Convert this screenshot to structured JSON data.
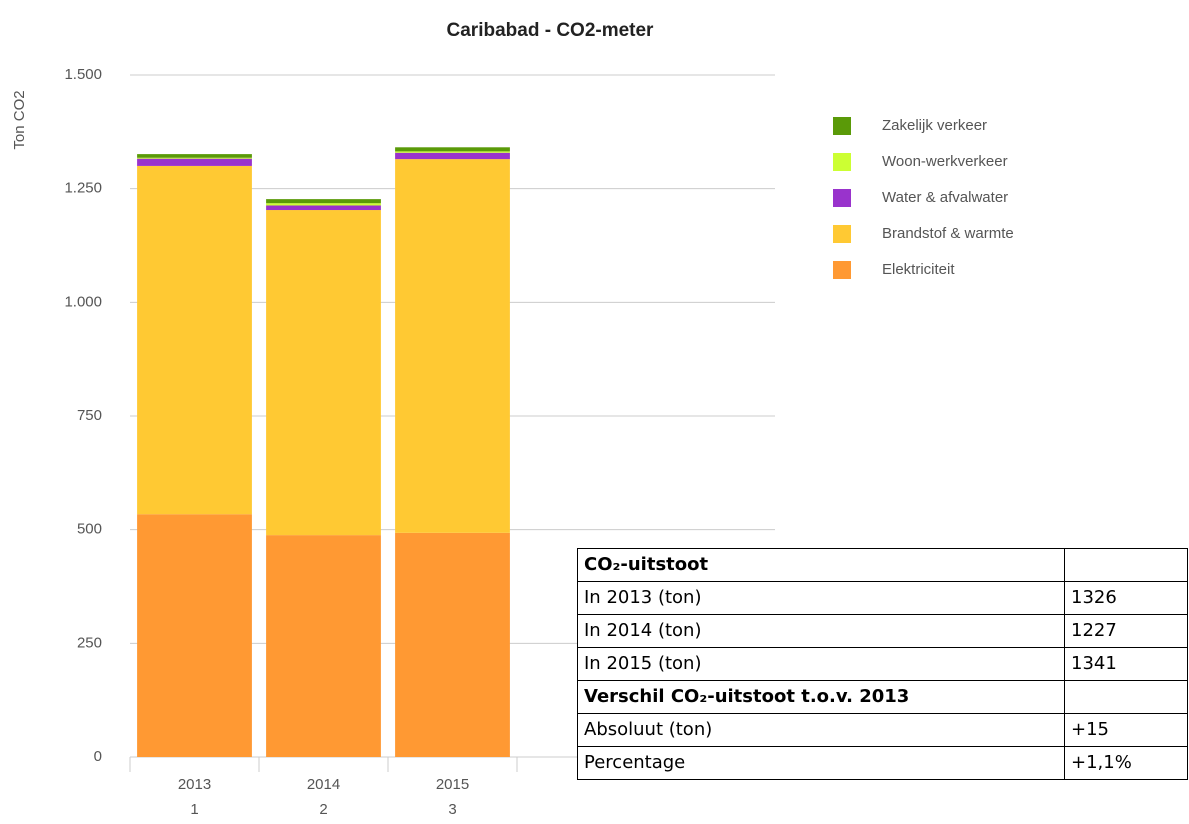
{
  "chart_data": {
    "type": "stacked_bar",
    "title": "Caribabad - CO2-meter",
    "y_label": "Ton CO2",
    "categories": [
      "2013",
      "2014",
      "2015",
      null,
      null
    ],
    "category_numbers": [
      "1",
      "2",
      "3",
      null,
      null
    ],
    "series": [
      {
        "name": "Elektriciteit",
        "color": "#ff9933",
        "values": [
          534,
          488,
          493,
          null,
          null
        ]
      },
      {
        "name": "Brandstof & warmte",
        "color": "#ffc933",
        "values": [
          766,
          715,
          822,
          null,
          null
        ]
      },
      {
        "name": "Water & afvalwater",
        "color": "#9933cc",
        "values": [
          16,
          10,
          14,
          null,
          null
        ]
      },
      {
        "name": "Woon-werkverkeer",
        "color": "#ccff33",
        "values": [
          2,
          5,
          3,
          null,
          null
        ]
      },
      {
        "name": "Zakelijk verkeer",
        "color": "#5a9a08",
        "values": [
          8,
          9,
          9,
          null,
          null
        ]
      }
    ],
    "ylim": [
      0,
      1500
    ],
    "yticks": [
      0,
      250,
      500,
      750,
      {
        "value": 1000,
        "label": "1.000"
      },
      {
        "value": 1250,
        "label": "1.250"
      },
      {
        "value": 1500,
        "label": "1.500"
      }
    ],
    "grid": true,
    "legend": "right"
  },
  "table": {
    "sections": [
      {
        "heading": "CO₂-uitstoot",
        "rows": [
          [
            "In 2013 (ton)",
            "1326"
          ],
          [
            "In 2014 (ton)",
            "1227"
          ],
          [
            "In 2015 (ton)",
            "1341"
          ]
        ]
      },
      {
        "heading": "Verschil CO₂-uitstoot t.o.v. 2013",
        "rows": [
          [
            "Absoluut (ton)",
            "+15"
          ],
          [
            "Percentage",
            "+1,1%"
          ]
        ]
      }
    ]
  }
}
